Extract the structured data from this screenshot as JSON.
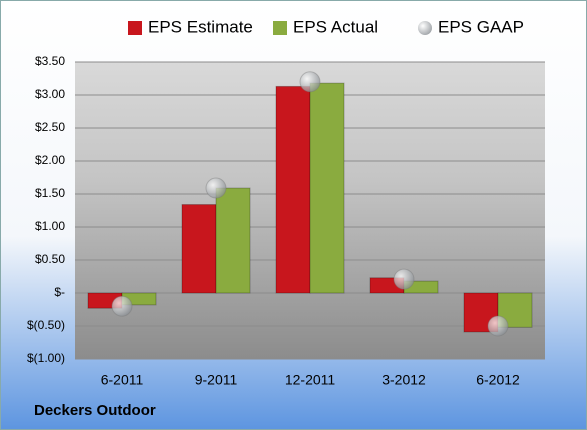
{
  "chart_data": {
    "type": "bar",
    "title": "Deckers Outdoor",
    "categories": [
      "6-2011",
      "9-2011",
      "12-2011",
      "3-2012",
      "6-2012"
    ],
    "series": [
      {
        "name": "EPS Estimate",
        "color": "#c8161d",
        "kind": "bar",
        "values": [
          -0.23,
          1.34,
          3.13,
          0.23,
          -0.59
        ]
      },
      {
        "name": "EPS Actual",
        "color": "#8aab3f",
        "kind": "bar",
        "values": [
          -0.18,
          1.59,
          3.18,
          0.18,
          -0.52
        ]
      },
      {
        "name": "EPS GAAP",
        "color": "#b4b8bc",
        "kind": "point",
        "values": [
          -0.2,
          1.59,
          3.2,
          0.21,
          -0.5
        ]
      }
    ],
    "ylim": [
      -1,
      3.5
    ],
    "yticks": [
      {
        "value": -1,
        "label": "$(1.00)"
      },
      {
        "value": -0.5,
        "label": "$(0.50)"
      },
      {
        "value": 0,
        "label": "$-"
      },
      {
        "value": 0.5,
        "label": "$0.50"
      },
      {
        "value": 1,
        "label": "$1.00"
      },
      {
        "value": 1.5,
        "label": "$1.50"
      },
      {
        "value": 2,
        "label": "$2.00"
      },
      {
        "value": 2.5,
        "label": "$2.50"
      },
      {
        "value": 3,
        "label": "$3.00"
      },
      {
        "value": 3.5,
        "label": "$3.50"
      }
    ],
    "grid": true
  }
}
